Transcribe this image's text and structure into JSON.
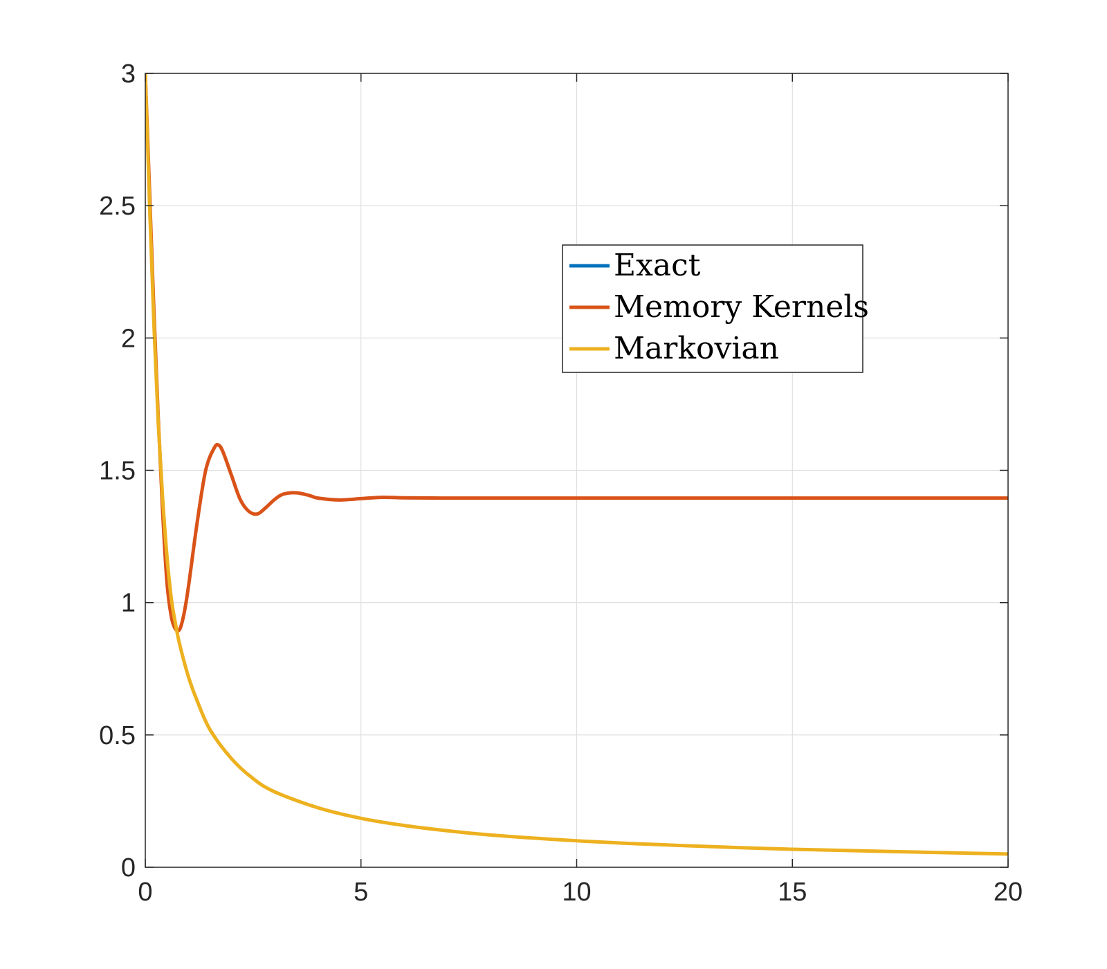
{
  "chart_data": {
    "type": "line",
    "title": "",
    "xlabel": "",
    "ylabel": "",
    "xlim": [
      0,
      20
    ],
    "ylim": [
      0,
      3
    ],
    "xticks": [
      0,
      5,
      10,
      15,
      20
    ],
    "yticks": [
      0,
      0.5,
      1,
      1.5,
      2,
      2.5,
      3
    ],
    "xtick_labels": [
      "0",
      "5",
      "10",
      "15",
      "20"
    ],
    "ytick_labels": [
      "0",
      "0.5",
      "1",
      "1.5",
      "2",
      "2.5",
      "3"
    ],
    "grid": true,
    "legend_position": "upper-right-inside",
    "series": [
      {
        "name": "Exact",
        "color": "#0072BD",
        "x": [
          0,
          0.1,
          0.2,
          0.3,
          0.4,
          0.5,
          0.6,
          0.7,
          0.8,
          0.9,
          1.0,
          1.2,
          1.4,
          1.6,
          1.7,
          1.8,
          2.0,
          2.2,
          2.4,
          2.6,
          2.8,
          3.0,
          3.2,
          3.5,
          3.8,
          4.0,
          4.5,
          5.0,
          5.5,
          6.0,
          7,
          8,
          10,
          12,
          15,
          20
        ],
        "y": [
          3.0,
          2.55,
          2.1,
          1.7,
          1.35,
          1.08,
          0.95,
          0.9,
          0.9,
          0.96,
          1.06,
          1.3,
          1.5,
          1.585,
          1.595,
          1.57,
          1.48,
          1.39,
          1.345,
          1.335,
          1.36,
          1.39,
          1.41,
          1.415,
          1.405,
          1.395,
          1.388,
          1.393,
          1.398,
          1.396,
          1.395,
          1.395,
          1.395,
          1.395,
          1.395,
          1.395
        ]
      },
      {
        "name": "Memory Kernels",
        "color": "#D95319",
        "x": [
          0,
          0.1,
          0.2,
          0.3,
          0.4,
          0.5,
          0.6,
          0.7,
          0.8,
          0.9,
          1.0,
          1.2,
          1.4,
          1.6,
          1.7,
          1.8,
          2.0,
          2.2,
          2.4,
          2.6,
          2.8,
          3.0,
          3.2,
          3.5,
          3.8,
          4.0,
          4.5,
          5.0,
          5.5,
          6.0,
          7,
          8,
          10,
          12,
          15,
          20
        ],
        "y": [
          3.0,
          2.55,
          2.1,
          1.7,
          1.35,
          1.08,
          0.95,
          0.9,
          0.9,
          0.96,
          1.06,
          1.3,
          1.5,
          1.585,
          1.595,
          1.57,
          1.48,
          1.39,
          1.345,
          1.335,
          1.36,
          1.39,
          1.41,
          1.415,
          1.405,
          1.395,
          1.388,
          1.393,
          1.398,
          1.396,
          1.395,
          1.395,
          1.395,
          1.395,
          1.395,
          1.395
        ]
      },
      {
        "name": "Markovian",
        "color": "#EDB120",
        "x": [
          0,
          0.1,
          0.2,
          0.3,
          0.4,
          0.5,
          0.6,
          0.7,
          0.8,
          1.0,
          1.2,
          1.5,
          2.0,
          2.5,
          3.0,
          4.0,
          5.0,
          6.0,
          7.0,
          8.0,
          10.0,
          12.0,
          15.0,
          20.0
        ],
        "y": [
          3.0,
          2.5,
          2.05,
          1.68,
          1.4,
          1.18,
          1.02,
          0.92,
          0.84,
          0.72,
          0.63,
          0.52,
          0.41,
          0.335,
          0.285,
          0.225,
          0.185,
          0.158,
          0.138,
          0.122,
          0.1,
          0.085,
          0.068,
          0.05
        ]
      }
    ]
  }
}
